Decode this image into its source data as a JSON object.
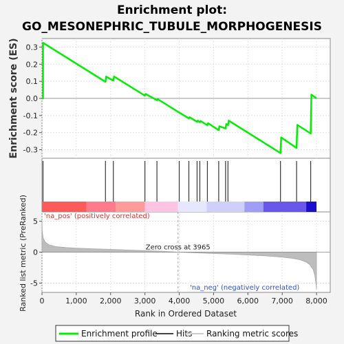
{
  "chart_data": {
    "type": "line",
    "title_line1": "Enrichment plot:",
    "title_line2": "GO_MESONEPHRIC_TUBULE_MORPHOGENESIS",
    "es_panel": {
      "ylabel": "Enrichment score (ES)",
      "ylim": [
        -0.35,
        0.35
      ],
      "yticks": [
        0.3,
        0.2,
        0.1,
        0.0,
        -0.1,
        -0.2,
        -0.3
      ],
      "ytick_labels": [
        "0.3",
        "0.2",
        "0.1",
        "0.0",
        "-0.1",
        "-0.2",
        "-0.3"
      ],
      "xlim": [
        0,
        8400
      ],
      "series": [
        {
          "name": "Enrichment profile",
          "color": "#00ee00",
          "x": [
            0,
            30,
            30,
            1850,
            1870,
            2080,
            2100,
            3000,
            3020,
            3350,
            3370,
            4000,
            4280,
            4300,
            4520,
            4540,
            4600,
            4620,
            4820,
            4840,
            5150,
            5170,
            5350,
            5370,
            5420,
            5440,
            6950,
            6970,
            7420,
            7440,
            7830,
            7850,
            8000
          ],
          "y": [
            0.0,
            0.0,
            0.325,
            0.097,
            0.127,
            0.104,
            0.128,
            0.016,
            0.026,
            -0.011,
            -0.004,
            -0.083,
            -0.117,
            -0.11,
            -0.137,
            -0.13,
            -0.139,
            -0.132,
            -0.157,
            -0.145,
            -0.186,
            -0.163,
            -0.176,
            -0.15,
            -0.156,
            -0.13,
            -0.32,
            -0.228,
            -0.29,
            -0.155,
            -0.205,
            0.022,
            0.0
          ]
        }
      ]
    },
    "hits": [
      30,
      1850,
      2080,
      3000,
      3350,
      4000,
      4280,
      4520,
      4600,
      4820,
      5150,
      5350,
      5420,
      6950,
      7420,
      7830
    ],
    "rank_panel": {
      "ylabel": "Ranked list metric (PreRanked)",
      "ylim": [
        -6.5,
        6.5
      ],
      "yticks": [
        5,
        0,
        -5
      ],
      "ytick_labels": [
        "5",
        "0",
        "-5"
      ],
      "na_pos_label": "'na_pos' (positively correlated)",
      "na_neg_label": "'na_neg' (negatively correlated)",
      "zero_cross_label": "Zero cross at 3965",
      "zero_cross": 3965,
      "profile_x": [
        0,
        10,
        40,
        100,
        200,
        400,
        700,
        1000,
        1500,
        2000,
        2500,
        3000,
        3500,
        3965,
        4500,
        5000,
        5500,
        6000,
        6500,
        7000,
        7300,
        7500,
        7700,
        7800,
        7900,
        7950,
        7990,
        8000
      ],
      "profile_y": [
        5.0,
        3.2,
        2.2,
        1.6,
        1.2,
        0.9,
        0.75,
        0.65,
        0.55,
        0.45,
        0.35,
        0.25,
        0.15,
        0.0,
        -0.12,
        -0.22,
        -0.32,
        -0.45,
        -0.6,
        -0.8,
        -1.0,
        -1.2,
        -1.6,
        -2.0,
        -2.8,
        -3.8,
        -5.2,
        -6.0
      ]
    },
    "xlabel": "Rank in Ordered Dataset",
    "xticks": [
      0,
      1000,
      2000,
      3000,
      4000,
      5000,
      6000,
      7000,
      8000
    ],
    "xtick_labels": [
      "0",
      "1,000",
      "2,000",
      "3,000",
      "4,000",
      "5,000",
      "6,000",
      "7,000",
      "8,000"
    ],
    "heatmap_segments": [
      {
        "from": 0,
        "to": 1300,
        "color": "#ff5a5a"
      },
      {
        "from": 1300,
        "to": 2150,
        "color": "#ff7b8b"
      },
      {
        "from": 2150,
        "to": 3000,
        "color": "#ff9a9a"
      },
      {
        "from": 3000,
        "to": 3960,
        "color": "#ffc4e4"
      },
      {
        "from": 3960,
        "to": 4800,
        "color": "#e6e6ff"
      },
      {
        "from": 4800,
        "to": 5900,
        "color": "#cfcffc"
      },
      {
        "from": 5900,
        "to": 6450,
        "color": "#9e9ef6"
      },
      {
        "from": 6450,
        "to": 7700,
        "color": "#6a56ea"
      },
      {
        "from": 7700,
        "to": 8000,
        "color": "#1c0ccc"
      }
    ],
    "legend": {
      "placement": "bottom",
      "items": [
        "Enrichment profile",
        "Hits",
        "Ranking metric scores"
      ]
    }
  }
}
